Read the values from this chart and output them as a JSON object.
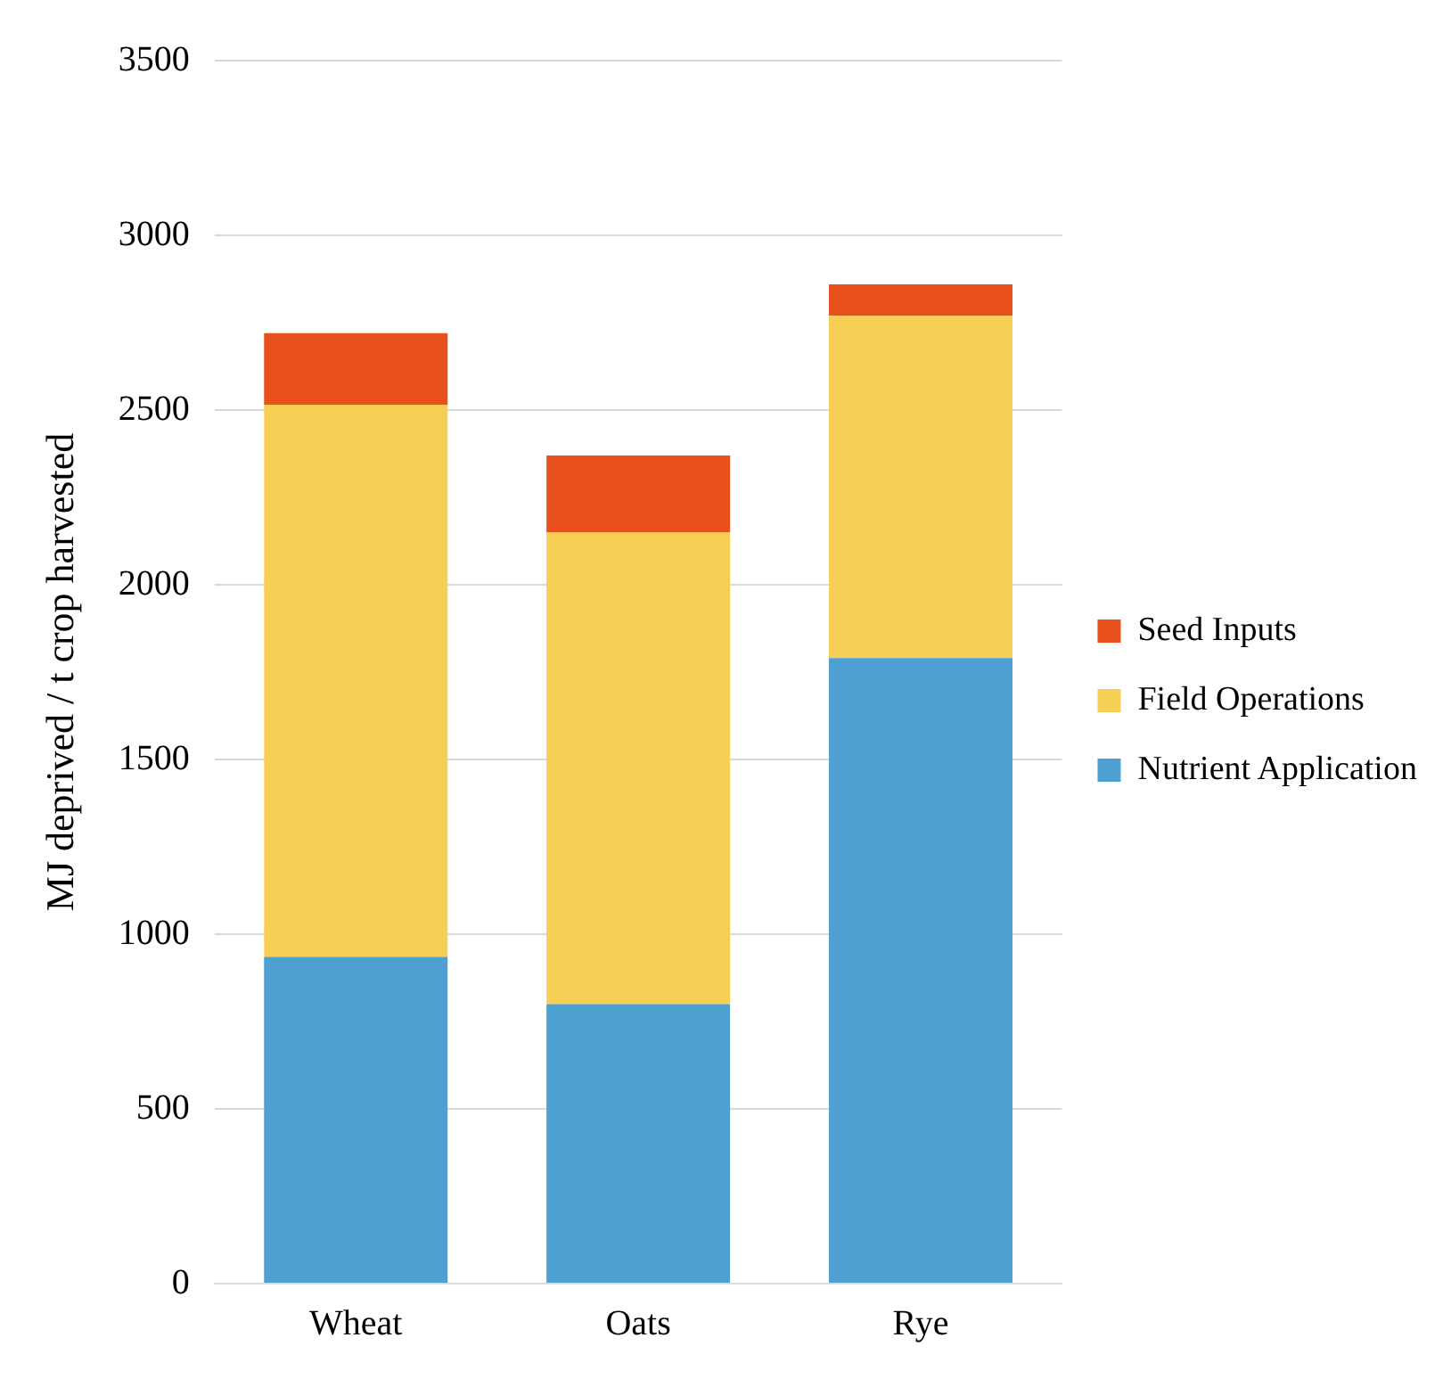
{
  "chart_data": {
    "type": "bar",
    "stacked": true,
    "ylabel": "MJ deprived / t crop harvested",
    "categories": [
      "Wheat",
      "Oats",
      "Rye"
    ],
    "series": [
      {
        "name": "Nutrient Application",
        "color": "#4e9fd2",
        "values": [
          935,
          800,
          1790
        ]
      },
      {
        "name": "Field Operations",
        "color": "#f7cf55",
        "values": [
          1580,
          1350,
          980
        ]
      },
      {
        "name": "Seed Inputs",
        "color": "#e8501c",
        "values": [
          205,
          220,
          90
        ]
      }
    ],
    "ylim": [
      0,
      3500
    ],
    "yticks": [
      0,
      500,
      1000,
      1500,
      2000,
      2500,
      3000,
      3500
    ],
    "grid": "y",
    "legend": "right"
  }
}
